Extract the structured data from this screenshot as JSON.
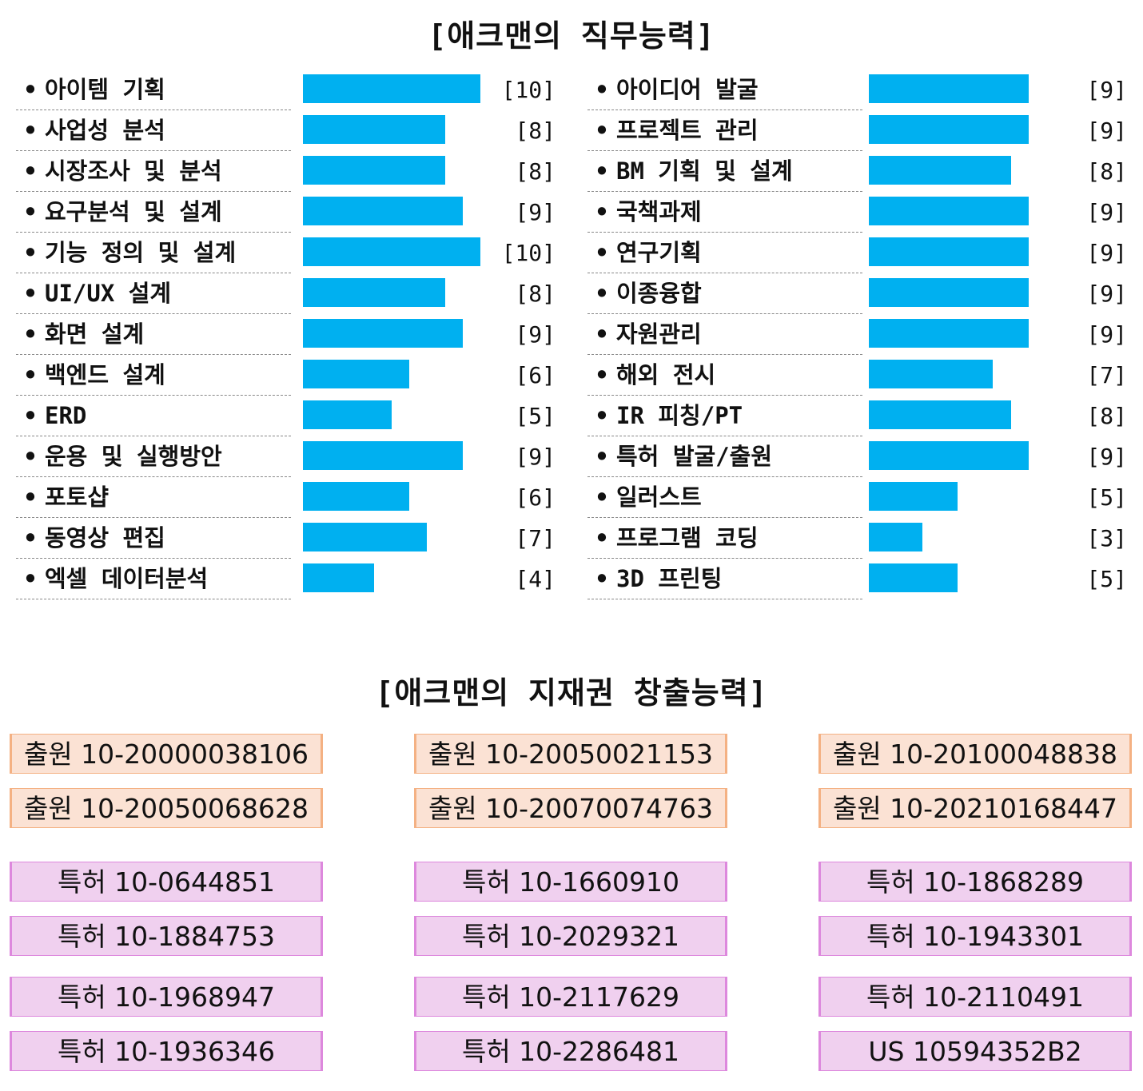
{
  "titles": {
    "skills": "[애크맨의 직무능력]",
    "ip": "[애크맨의 지재권 창출능력]"
  },
  "bar_color": "#00b0f0",
  "chart_data": {
    "type": "bar",
    "orientation": "horizontal",
    "title": "[애크맨의 직무능력]",
    "xlim": [
      0,
      10
    ],
    "left": [
      {
        "label": "아이템 기획",
        "value": 10,
        "tag": "[10]"
      },
      {
        "label": "사업성 분석",
        "value": 8,
        "tag": "[8]"
      },
      {
        "label": "시장조사 및 분석",
        "value": 8,
        "tag": "[8]"
      },
      {
        "label": "요구분석 및 설계",
        "value": 9,
        "tag": "[9]"
      },
      {
        "label": "기능 정의 및 설계",
        "value": 10,
        "tag": "[10]"
      },
      {
        "label": "UI/UX 설계",
        "value": 8,
        "tag": "[8]"
      },
      {
        "label": "화면 설계",
        "value": 9,
        "tag": "[9]"
      },
      {
        "label": "백엔드 설계",
        "value": 6,
        "tag": "[6]"
      },
      {
        "label": "ERD",
        "value": 5,
        "tag": "[5]"
      },
      {
        "label": "운용 및 실행방안",
        "value": 9,
        "tag": "[9]"
      },
      {
        "label": "포토샵",
        "value": 6,
        "tag": "[6]"
      },
      {
        "label": "동영상 편집",
        "value": 7,
        "tag": "[7]"
      },
      {
        "label": "엑셀 데이터분석",
        "value": 4,
        "tag": "[4]"
      }
    ],
    "right": [
      {
        "label": "아이디어 발굴",
        "value": 9,
        "tag": "[9]"
      },
      {
        "label": "프로젝트 관리",
        "value": 9,
        "tag": "[9]"
      },
      {
        "label": "BM 기획 및 설계",
        "value": 8,
        "tag": "[8]"
      },
      {
        "label": "국책과제",
        "value": 9,
        "tag": "[9]"
      },
      {
        "label": "연구기획",
        "value": 9,
        "tag": "[9]"
      },
      {
        "label": "이종융합",
        "value": 9,
        "tag": "[9]"
      },
      {
        "label": "자원관리",
        "value": 9,
        "tag": "[9]"
      },
      {
        "label": "해외 전시",
        "value": 7,
        "tag": "[7]"
      },
      {
        "label": "IR 피칭/PT",
        "value": 8,
        "tag": "[8]"
      },
      {
        "label": "특허 발굴/출원",
        "value": 9,
        "tag": "[9]"
      },
      {
        "label": "일러스트",
        "value": 5,
        "tag": "[5]"
      },
      {
        "label": "프로그램 코딩",
        "value": 3,
        "tag": "[3]"
      },
      {
        "label": "3D 프린팅",
        "value": 5,
        "tag": "[5]"
      }
    ]
  },
  "ip": {
    "applications": [
      "출원 10-20000038106",
      "출원 10-20050021153",
      "출원 10-20100048838",
      "출원 10-20050068628",
      "출원 10-20070074763",
      "출원 10-20210168447"
    ],
    "patents": [
      "특허 10-0644851",
      "특허 10-1660910",
      "특허 10-1868289",
      "특허 10-1884753",
      "특허 10-2029321",
      "특허 10-1943301",
      "특허 10-1968947",
      "특허 10-2117629",
      "특허 10-2110491",
      "특허 10-1936346",
      "특허 10-2286481",
      "US 10594352B2"
    ],
    "application_color": "#fbe2d4",
    "patent_color": "#f0d0ef"
  }
}
